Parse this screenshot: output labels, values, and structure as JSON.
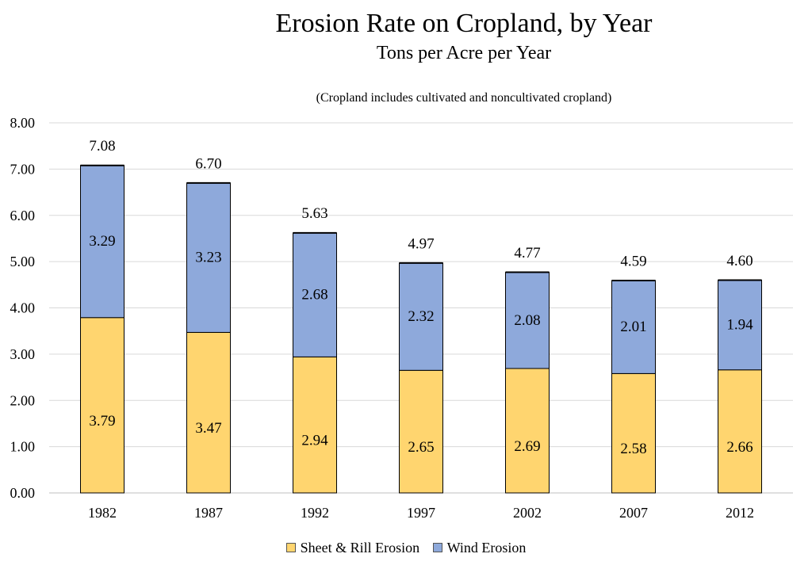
{
  "chart_data": {
    "type": "bar",
    "stacked": true,
    "title": "Erosion Rate on Cropland, by Year",
    "subtitle": "Tons per Acre per Year",
    "note": "(Cropland includes cultivated and noncultivated cropland)",
    "categories": [
      "1982",
      "1987",
      "1992",
      "1997",
      "2002",
      "2007",
      "2012"
    ],
    "series": [
      {
        "name": "Sheet & Rill Erosion",
        "color": "#FFD56F",
        "values": [
          3.79,
          3.47,
          2.94,
          2.65,
          2.69,
          2.58,
          2.66
        ],
        "labels": [
          "3.79",
          "3.47",
          "2.94",
          "2.65",
          "2.69",
          "2.58",
          "2.66"
        ]
      },
      {
        "name": "Wind Erosion",
        "color": "#8EA9DB",
        "values": [
          3.29,
          3.23,
          2.68,
          2.32,
          2.08,
          2.01,
          1.94
        ],
        "labels": [
          "3.29",
          "3.23",
          "2.68",
          "2.32",
          "2.08",
          "2.01",
          "1.94"
        ]
      }
    ],
    "totals": [
      7.08,
      6.7,
      5.63,
      4.97,
      4.77,
      4.59,
      4.6
    ],
    "total_labels": [
      "7.08",
      "6.70",
      "5.63",
      "4.97",
      "4.77",
      "4.59",
      "4.60"
    ],
    "ylim": [
      0,
      8
    ],
    "yticks": [
      "0.00",
      "1.00",
      "2.00",
      "3.00",
      "4.00",
      "5.00",
      "6.00",
      "7.00",
      "8.00"
    ],
    "grid": true,
    "legend_position": "bottom"
  }
}
